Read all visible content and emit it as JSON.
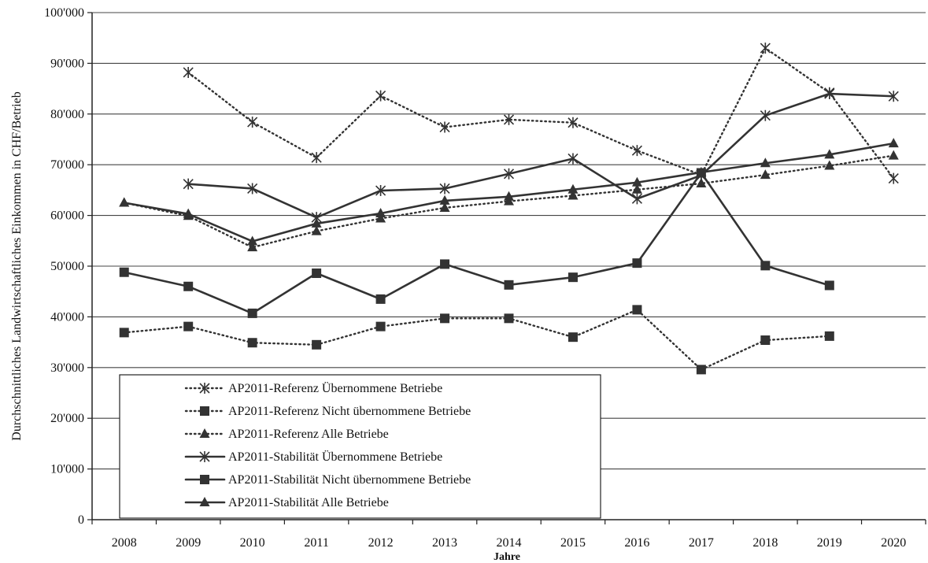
{
  "chart_data": {
    "type": "line",
    "title": "",
    "xlabel": "Jahre",
    "ylabel": "Durchschnittliches Landwirtschaftliches Einkommen in CHF/Betrieb",
    "ylim": [
      0,
      100000
    ],
    "yticks": [
      0,
      10000,
      20000,
      30000,
      40000,
      50000,
      60000,
      70000,
      80000,
      90000,
      100000
    ],
    "ytick_labels": [
      "0",
      "10'000",
      "20'000",
      "30'000",
      "40'000",
      "50'000",
      "60'000",
      "70'000",
      "80'000",
      "90'000",
      "100'000"
    ],
    "categories": [
      "2008",
      "2009",
      "2010",
      "2011",
      "2012",
      "2013",
      "2014",
      "2015",
      "2016",
      "2017",
      "2018",
      "2019",
      "2020"
    ],
    "grid": "horizontal",
    "legend_position": "bottom-left",
    "series": [
      {
        "name": "AP2011-Referenz Übernommene Betriebe",
        "style": "dotted",
        "marker": "asterisk",
        "color": "#333333",
        "values": [
          null,
          88200,
          78400,
          71400,
          83600,
          77400,
          78900,
          78300,
          72800,
          68000,
          93000,
          84200,
          67300
        ]
      },
      {
        "name": "AP2011-Referenz Nicht übernommene Betriebe",
        "style": "dotted",
        "marker": "square",
        "color": "#333333",
        "values": [
          36900,
          38100,
          34900,
          34500,
          38100,
          39700,
          39700,
          36000,
          41400,
          29600,
          35400,
          36200,
          null
        ]
      },
      {
        "name": "AP2011-Referenz Alle Betriebe",
        "style": "dotted",
        "marker": "triangle",
        "color": "#333333",
        "values": [
          62500,
          59900,
          53700,
          56900,
          59400,
          61500,
          62800,
          63900,
          65100,
          66300,
          68000,
          69800,
          71800
        ]
      },
      {
        "name": "AP2011-Stabilität Übernommene Betriebe",
        "style": "solid",
        "marker": "asterisk",
        "color": "#333333",
        "values": [
          null,
          66200,
          65300,
          59600,
          64900,
          65300,
          68200,
          71200,
          63300,
          67900,
          79700,
          84000,
          83500
        ]
      },
      {
        "name": "AP2011-Stabilität Nicht übernommene Betriebe",
        "style": "solid",
        "marker": "square",
        "color": "#333333",
        "values": [
          48800,
          46000,
          40700,
          48600,
          43500,
          50400,
          46300,
          47800,
          50600,
          68400,
          50100,
          46200,
          null
        ]
      },
      {
        "name": "AP2011-Stabilität Alle Betriebe",
        "style": "solid",
        "marker": "triangle",
        "color": "#333333",
        "values": [
          62500,
          60300,
          54900,
          58400,
          60400,
          62900,
          63700,
          65100,
          66500,
          68500,
          70300,
          72000,
          74200
        ]
      }
    ]
  }
}
